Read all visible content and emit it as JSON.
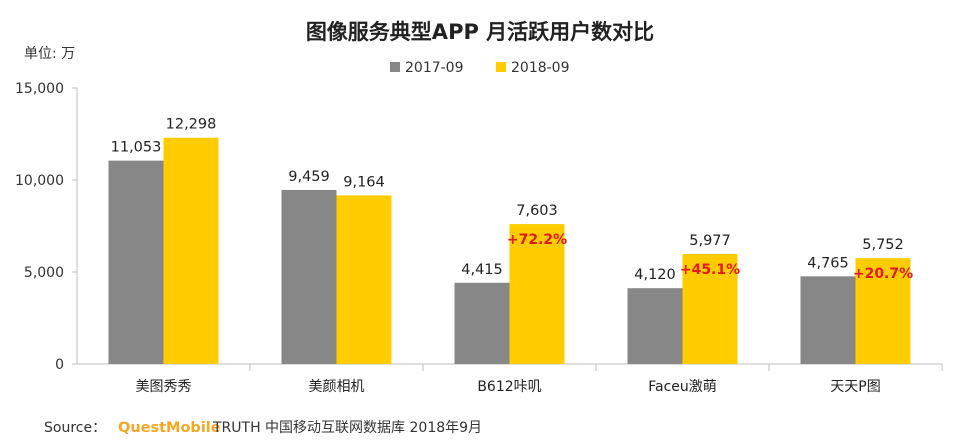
{
  "chart_data": {
    "type": "bar",
    "title": "图像服务典型APP 月活跃用户数对比",
    "unit_label": "单位: 万",
    "categories": [
      "美图秀秀",
      "美颜相机",
      "B612咔叽",
      "Faceu激萌",
      "天天P图"
    ],
    "series": [
      {
        "name": "2017-09",
        "color": "#878787",
        "values": [
          11053,
          9459,
          4415,
          4120,
          4765
        ],
        "labels": [
          "11,053",
          "9,459",
          "4,415",
          "4,120",
          "4,765"
        ]
      },
      {
        "name": "2018-09",
        "color": "#ffcc00",
        "values": [
          12298,
          9164,
          7603,
          5977,
          5752
        ],
        "labels": [
          "12,298",
          "9,164",
          "7,603",
          "5,977",
          "5,752"
        ]
      }
    ],
    "growth_labels": [
      "",
      "",
      "+72.2%",
      "+45.1%",
      "+20.7%"
    ],
    "growth_color": "#e31a1a",
    "ylim": [
      0,
      15000
    ],
    "yticks": [
      0,
      5000,
      10000,
      15000
    ],
    "ytick_labels": [
      "0",
      "5,000",
      "10,000",
      "15,000"
    ],
    "grid": false,
    "legend_position": "top-center"
  },
  "source": {
    "prefix": "Source：",
    "brand": "QuestMobile",
    "text": "TRUTH 中国移动互联网数据库 2018年9月",
    "brand_color": "#f5a623"
  }
}
